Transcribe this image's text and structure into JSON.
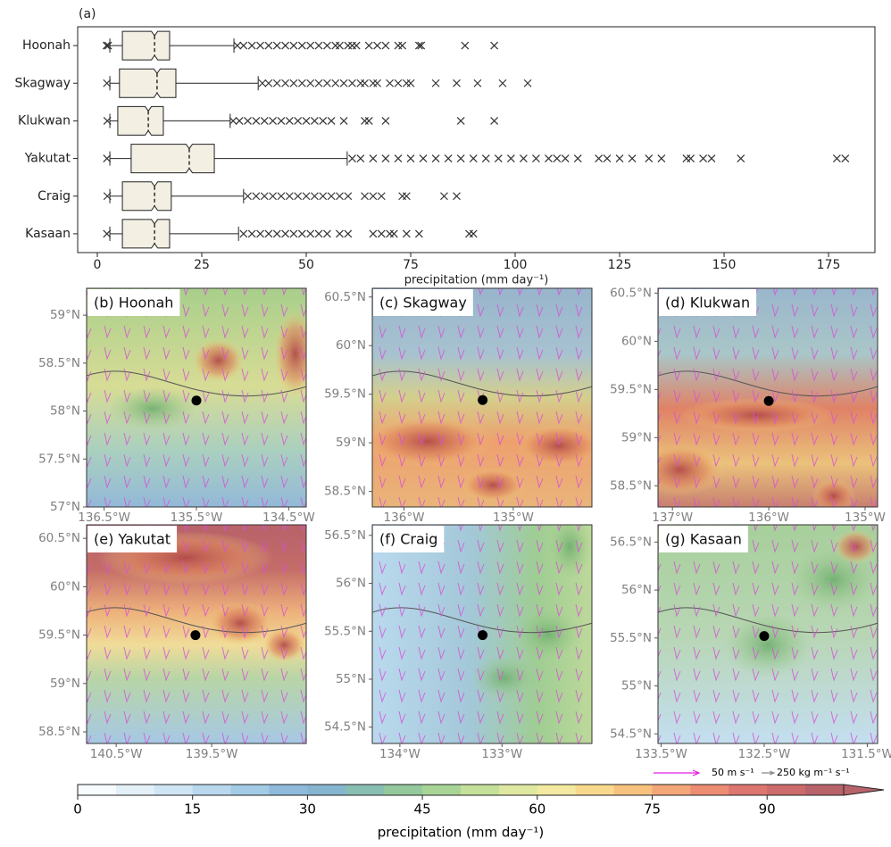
{
  "chart_data": [
    {
      "type": "box",
      "label": "(a)",
      "xlabel": "precipitation (mm day⁻¹)",
      "categories": [
        "Hoonah",
        "Skagway",
        "Klukwan",
        "Yakutat",
        "Craig",
        "Kasaan"
      ],
      "color": "#f3efe3",
      "xlim": [
        -4.7,
        186.1
      ],
      "xticks": [
        0,
        25,
        50,
        75,
        100,
        125,
        150,
        175
      ],
      "boxes": [
        {
          "whislo": 3,
          "q1": 6.0,
          "med": 13.7,
          "q3": 17.3,
          "whishi": 32.7,
          "fliers": [
            2.2,
            2.6,
            33.5,
            35,
            37,
            39,
            41,
            43,
            45,
            47,
            49,
            51,
            53,
            55,
            57,
            58,
            60,
            61,
            62,
            65,
            67,
            69,
            72,
            73,
            77,
            77.5,
            88,
            95
          ]
        },
        {
          "whislo": 3,
          "q1": 5.3,
          "med": 14.3,
          "q3": 18.8,
          "whishi": 38.5,
          "fliers": [
            2.3,
            39.5,
            41,
            43,
            45,
            47,
            49,
            51,
            53,
            55,
            57,
            59,
            61,
            63,
            64,
            66,
            67,
            70,
            72,
            74,
            75,
            81,
            86,
            91,
            97,
            103
          ]
        },
        {
          "whislo": 3,
          "q1": 4.9,
          "med": 12.2,
          "q3": 15.8,
          "whishi": 31.8,
          "fliers": [
            2.4,
            32.5,
            34,
            36,
            38,
            40,
            42,
            44,
            46,
            48,
            50,
            52,
            54,
            56,
            59,
            64,
            65,
            69,
            87,
            95
          ]
        },
        {
          "whislo": 3,
          "q1": 8.1,
          "med": 22.0,
          "q3": 28.0,
          "whishi": 59.8,
          "fliers": [
            2.3,
            61,
            63,
            66,
            69,
            72,
            75,
            78,
            81,
            84,
            87,
            90,
            93,
            96,
            99,
            102,
            105,
            108,
            110,
            112,
            115,
            120,
            122,
            125,
            128,
            132,
            135,
            141,
            142,
            145,
            147,
            154,
            177,
            179
          ]
        },
        {
          "whislo": 3,
          "q1": 6.0,
          "med": 13.7,
          "q3": 17.7,
          "whishi": 35.0,
          "fliers": [
            2.4,
            36,
            38,
            40,
            42,
            44,
            46,
            48,
            50,
            52,
            54,
            56,
            58,
            60,
            64,
            66,
            68,
            73,
            74,
            83,
            86
          ]
        },
        {
          "whislo": 3,
          "q1": 6.0,
          "med": 13.7,
          "q3": 17.3,
          "whishi": 33.8,
          "fliers": [
            2.3,
            35,
            37,
            39,
            41,
            43,
            45,
            47,
            49,
            51,
            53,
            55,
            58,
            60,
            66,
            68,
            70,
            71,
            74,
            77,
            89,
            90
          ]
        }
      ]
    },
    {
      "type": "map",
      "title": "(b) Hoonah",
      "xlim": [
        -136.69,
        -134.31
      ],
      "ylim": [
        57.0,
        59.28
      ],
      "xticks": [
        {
          "value": -136.5,
          "label": "136.5°W"
        },
        {
          "value": -135.5,
          "label": "135.5°W"
        },
        {
          "value": -134.5,
          "label": "134.5°W"
        }
      ],
      "yticks": [
        {
          "value": 57,
          "label": "57°N"
        },
        {
          "value": 57.5,
          "label": "57.5°N"
        },
        {
          "value": 58,
          "label": "58°N"
        },
        {
          "value": 58.5,
          "label": "58.5°N"
        },
        {
          "value": 59,
          "label": "59°N"
        }
      ],
      "x": [
        -135.5
      ],
      "y": [
        58.11
      ]
    },
    {
      "type": "map",
      "title": "(c) Skagway",
      "xlim": [
        -136.29,
        -134.28
      ],
      "ylim": [
        58.34,
        60.59
      ],
      "xticks": [
        {
          "value": -136,
          "label": "136°W"
        },
        {
          "value": -135,
          "label": "135°W"
        }
      ],
      "yticks": [
        {
          "value": 58.5,
          "label": "58.5°N"
        },
        {
          "value": 59,
          "label": "59°N"
        },
        {
          "value": 59.5,
          "label": "59.5°N"
        },
        {
          "value": 60,
          "label": "60°N"
        },
        {
          "value": 60.5,
          "label": "60.5°N"
        }
      ],
      "x": [
        -135.28
      ],
      "y": [
        59.44
      ]
    },
    {
      "type": "map",
      "title": "(d) Klukwan",
      "xlim": [
        -137.15,
        -134.87
      ],
      "ylim": [
        58.28,
        60.55
      ],
      "xticks": [
        {
          "value": -137,
          "label": "137°W"
        },
        {
          "value": -136,
          "label": "136°W"
        },
        {
          "value": -135,
          "label": "135°W"
        }
      ],
      "yticks": [
        {
          "value": 58.5,
          "label": "58.5°N"
        },
        {
          "value": 59,
          "label": "59°N"
        },
        {
          "value": 59.5,
          "label": "59.5°N"
        },
        {
          "value": 60,
          "label": "60°N"
        },
        {
          "value": 60.5,
          "label": "60.5°N"
        }
      ],
      "x": [
        -136.0
      ],
      "y": [
        59.38
      ]
    },
    {
      "type": "map",
      "title": "(e) Yakutat",
      "xlim": [
        -140.81,
        -138.51
      ],
      "ylim": [
        58.38,
        60.64
      ],
      "xticks": [
        {
          "value": -140.5,
          "label": "140.5°W"
        },
        {
          "value": -139.5,
          "label": "139.5°W"
        }
      ],
      "yticks": [
        {
          "value": 58.5,
          "label": "58.5°N"
        },
        {
          "value": 59,
          "label": "59°N"
        },
        {
          "value": 59.5,
          "label": "59.5°N"
        },
        {
          "value": 60,
          "label": "60°N"
        },
        {
          "value": 60.5,
          "label": "60.5°N"
        }
      ],
      "x": [
        -139.67
      ],
      "y": [
        59.5
      ]
    },
    {
      "type": "map",
      "title": "(f) Craig",
      "xlim": [
        -134.27,
        -132.12
      ],
      "ylim": [
        54.33,
        56.61
      ],
      "xticks": [
        {
          "value": -134,
          "label": "134°W"
        },
        {
          "value": -133,
          "label": "133°W"
        }
      ],
      "yticks": [
        {
          "value": 54.5,
          "label": "54.5°N"
        },
        {
          "value": 55,
          "label": "55°N"
        },
        {
          "value": 55.5,
          "label": "55.5°N"
        },
        {
          "value": 56,
          "label": "56°N"
        },
        {
          "value": 56.5,
          "label": "56.5°N"
        }
      ],
      "x": [
        -133.19
      ],
      "y": [
        55.46
      ]
    },
    {
      "type": "map",
      "title": "(g) Kasaan",
      "xlim": [
        -133.53,
        -131.4
      ],
      "ylim": [
        54.4,
        56.68
      ],
      "xticks": [
        {
          "value": -133.5,
          "label": "133.5°W"
        },
        {
          "value": -132.5,
          "label": "132.5°W"
        },
        {
          "value": -131.5,
          "label": "131.5°W"
        }
      ],
      "yticks": [
        {
          "value": 54.5,
          "label": "54.5°N"
        },
        {
          "value": 55,
          "label": "55°N"
        },
        {
          "value": 55.5,
          "label": "55.5°N"
        },
        {
          "value": 56,
          "label": "56°N"
        },
        {
          "value": 56.5,
          "label": "56.5°N"
        }
      ],
      "x": [
        -132.5
      ],
      "y": [
        55.52
      ]
    }
  ],
  "colorbar": {
    "label": "precipitation (mm day⁻¹)",
    "lim": [
      0,
      100
    ],
    "ticks": [
      0,
      15,
      30,
      45,
      60,
      75,
      90
    ],
    "colors": [
      "#f7fbfd",
      "#e3f0f8",
      "#cfe5f3",
      "#b9d8ee",
      "#a3cbe6",
      "#8fbadc",
      "#86b5cf",
      "#89bfb3",
      "#93c99c",
      "#a8d595",
      "#c4e09a",
      "#dfe8a0",
      "#f3e9a0",
      "#f8d98c",
      "#f7c27e",
      "#f3a678",
      "#ec8c72",
      "#dd7570",
      "#cc6a6c",
      "#b8636a"
    ]
  },
  "quiver_key": {
    "wind": "50 m s⁻¹",
    "wind_color": "#e020e0",
    "flux": "250 kg m⁻¹ s⁻¹",
    "flux_color": "#888888"
  }
}
